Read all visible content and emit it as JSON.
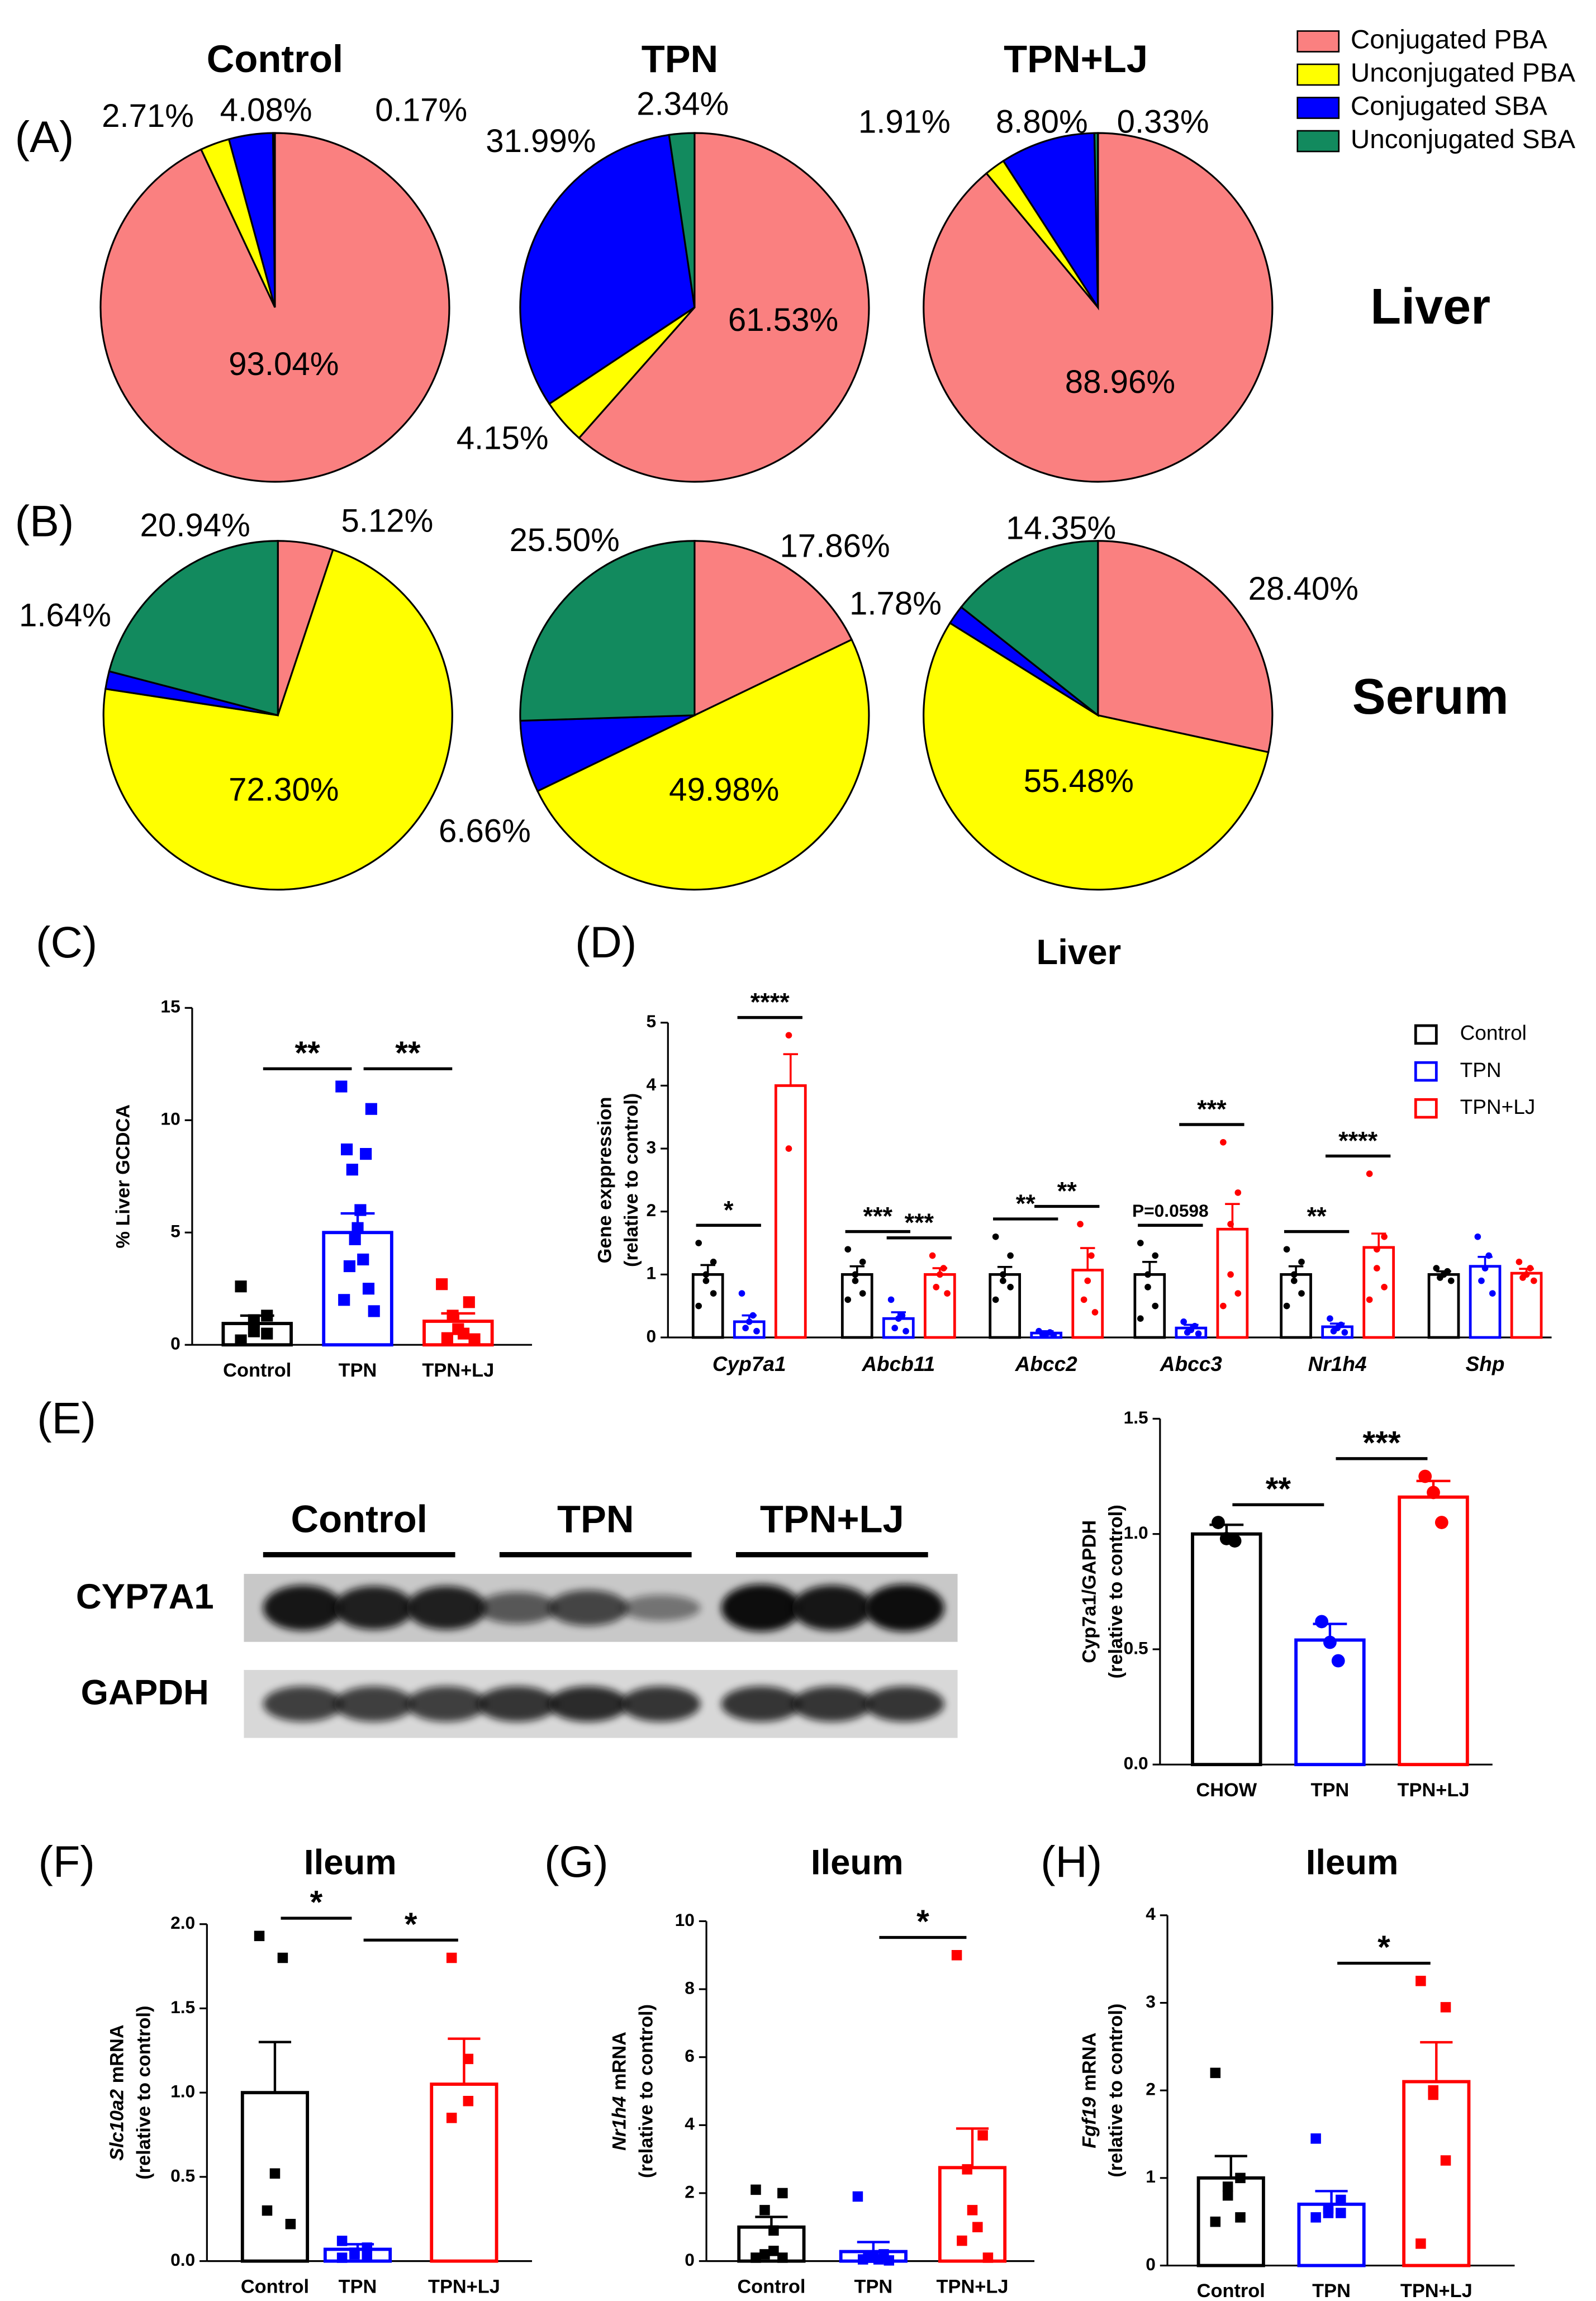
{
  "chart_data": [
    {
      "type": "pie",
      "panel": "(A)",
      "title": "Control",
      "categories": [
        "Conjugated PBA",
        "Unconjugated PBA",
        "Conjugated SBA",
        "Unconjugated SBA"
      ],
      "colors": [
        "#fa8080",
        "#ffff00",
        "#0000ff",
        "#128a5e"
      ],
      "values": [
        93.04,
        2.71,
        4.08,
        0.17
      ],
      "value_labels": [
        "93.04%",
        "2.71%",
        "4.08%",
        "0.17%"
      ],
      "legend": "top-right"
    },
    {
      "type": "pie",
      "title": "TPN",
      "categories": [
        "Conjugated PBA",
        "Unconjugated PBA",
        "Conjugated SBA",
        "Unconjugated SBA"
      ],
      "colors": [
        "#fa8080",
        "#ffff00",
        "#0000ff",
        "#128a5e"
      ],
      "values": [
        61.53,
        4.15,
        31.99,
        2.34
      ],
      "value_labels": [
        "61.53%",
        "4.15%",
        "31.99%",
        "2.34%"
      ]
    },
    {
      "type": "pie",
      "title": "TPN+LJ",
      "annotation": "Liver",
      "categories": [
        "Conjugated PBA",
        "Unconjugated PBA",
        "Conjugated SBA",
        "Unconjugated SBA"
      ],
      "colors": [
        "#fa8080",
        "#ffff00",
        "#0000ff",
        "#128a5e"
      ],
      "values": [
        88.96,
        1.91,
        8.8,
        0.33
      ],
      "value_labels": [
        "88.96%",
        "1.91%",
        "8.80%",
        "0.33%"
      ]
    },
    {
      "type": "pie",
      "panel": "(B)",
      "categories": [
        "Conjugated PBA",
        "Unconjugated PBA",
        "Conjugated SBA",
        "Unconjugated SBA"
      ],
      "colors": [
        "#fa8080",
        "#ffff00",
        "#0000ff",
        "#128a5e"
      ],
      "values": [
        5.12,
        72.3,
        1.64,
        20.94
      ],
      "value_labels": [
        "5.12%",
        "72.30%",
        "1.64%",
        "20.94%"
      ]
    },
    {
      "type": "pie",
      "categories": [
        "Conjugated PBA",
        "Unconjugated PBA",
        "Conjugated SBA",
        "Unconjugated SBA"
      ],
      "colors": [
        "#fa8080",
        "#ffff00",
        "#0000ff",
        "#128a5e"
      ],
      "values": [
        17.86,
        49.98,
        6.66,
        25.5
      ],
      "value_labels": [
        "17.86%",
        "49.98%",
        "6.66%",
        "25.50%"
      ]
    },
    {
      "type": "pie",
      "annotation": "Serum",
      "categories": [
        "Conjugated PBA",
        "Unconjugated PBA",
        "Conjugated SBA",
        "Unconjugated SBA"
      ],
      "colors": [
        "#fa8080",
        "#ffff00",
        "#0000ff",
        "#128a5e"
      ],
      "values": [
        28.4,
        55.48,
        1.78,
        14.35
      ],
      "value_labels": [
        "28.40%",
        "55.48%",
        "1.78%",
        "14.35%"
      ]
    },
    {
      "type": "bar",
      "panel": "(C)",
      "ylabel": [
        "% Liver GCDCA"
      ],
      "categories": [
        "Control",
        "TPN",
        "TPN+LJ"
      ],
      "colors": [
        "#000000",
        "#0000ff",
        "#ff0000"
      ],
      "marker": "square",
      "values": [
        0.95,
        5.0,
        1.05
      ],
      "errors": [
        0.35,
        0.85,
        0.35
      ],
      "points": [
        [
          2.6,
          1.3,
          1.1,
          0.6,
          0.5,
          0.2
        ],
        [
          11.5,
          10.5,
          8.7,
          8.5,
          7.8,
          6.0,
          5.2,
          4.7,
          3.8,
          3.5,
          2.5,
          2.0,
          1.5
        ],
        [
          2.7,
          1.9,
          1.3,
          0.7,
          0.5,
          0.3,
          0.25
        ]
      ],
      "ylim": [
        0,
        15
      ],
      "yticks": [
        0,
        5,
        10,
        15
      ],
      "annotations": [
        {
          "text": "**",
          "between": [
            "Control",
            "TPN"
          ]
        },
        {
          "text": "**",
          "between": [
            "TPN",
            "TPN+LJ"
          ]
        }
      ]
    },
    {
      "type": "grouped_bar",
      "panel": "(D)",
      "title": "Liver",
      "ylabel": [
        "Gene exppression",
        "(relative to control)"
      ],
      "legend": "top-right",
      "marker": "circle",
      "categories": [
        "Cyp7a1",
        "Abcb11",
        "Abcc2",
        "Abcc3",
        "Nr1h4",
        "Shp"
      ],
      "series": [
        {
          "name": "Control",
          "color": "#000000",
          "values": [
            1.0,
            1.0,
            1.0,
            1.0,
            1.0,
            1.0
          ],
          "errors": [
            0.15,
            0.13,
            0.12,
            0.2,
            0.13,
            0.05
          ],
          "points": [
            [
              1.5,
              1.2,
              1.0,
              0.9,
              0.7,
              0.5
            ],
            [
              1.4,
              1.2,
              1.0,
              0.9,
              0.7,
              0.6
            ],
            [
              1.6,
              1.3,
              1.0,
              0.9,
              0.8,
              0.6
            ],
            [
              1.5,
              1.3,
              1.0,
              0.8,
              0.5,
              0.3
            ],
            [
              1.4,
              1.2,
              1.0,
              0.9,
              0.7,
              0.5
            ],
            [
              1.1,
              1.05,
              1.0,
              0.95,
              0.9
            ]
          ]
        },
        {
          "name": "TPN",
          "color": "#0000ff",
          "values": [
            0.25,
            0.3,
            0.07,
            0.15,
            0.17,
            1.13
          ],
          "errors": [
            0.1,
            0.1,
            0.03,
            0.05,
            0.05,
            0.15
          ],
          "points": [
            [
              0.7,
              0.35,
              0.25,
              0.15,
              0.1
            ],
            [
              0.6,
              0.35,
              0.3,
              0.15,
              0.1
            ],
            [
              0.1,
              0.08,
              0.06,
              0.05,
              0.04
            ],
            [
              0.25,
              0.18,
              0.12,
              0.08,
              0.06
            ],
            [
              0.3,
              0.2,
              0.15,
              0.1,
              0.08
            ],
            [
              1.6,
              1.3,
              1.1,
              0.9,
              0.7
            ]
          ]
        },
        {
          "name": "TPN+LJ",
          "color": "#ff0000",
          "values": [
            4.0,
            1.0,
            1.07,
            1.72,
            1.43,
            1.02
          ],
          "errors": [
            0.5,
            0.1,
            0.35,
            0.4,
            0.22,
            0.07
          ],
          "points": [
            [
              4.8,
              3.0
            ],
            [
              1.3,
              1.1,
              1.0,
              0.8,
              0.7
            ],
            [
              1.8,
              1.3,
              0.9,
              0.6,
              0.4
            ],
            [
              3.1,
              2.3,
              1.8,
              1.0,
              0.7,
              0.5
            ],
            [
              2.6,
              1.6,
              1.4,
              1.1,
              0.8,
              0.6
            ],
            [
              1.2,
              1.1,
              1.0,
              0.95,
              0.9
            ]
          ]
        }
      ],
      "ylim": [
        0,
        5
      ],
      "yticks": [
        0,
        1,
        2,
        3,
        4,
        5
      ],
      "annotations": [
        {
          "category": "Cyp7a1",
          "text": "*",
          "between": [
            "Control",
            "TPN"
          ]
        },
        {
          "category": "Cyp7a1",
          "text": "****",
          "between": [
            "TPN",
            "TPN+LJ"
          ]
        },
        {
          "category": "Abcb11",
          "text": "***",
          "between": [
            "Control",
            "TPN"
          ]
        },
        {
          "category": "Abcb11",
          "text": "***",
          "between": [
            "TPN",
            "TPN+LJ"
          ]
        },
        {
          "category": "Abcc2",
          "text": "**",
          "between": [
            "Control",
            "TPN"
          ]
        },
        {
          "category": "Abcc2",
          "text": "**",
          "between": [
            "TPN",
            "TPN+LJ"
          ]
        },
        {
          "category": "Abcc3",
          "text": "P=0.0598",
          "between": [
            "Control",
            "TPN"
          ]
        },
        {
          "category": "Abcc3",
          "text": "***",
          "between": [
            "TPN",
            "TPN+LJ"
          ]
        },
        {
          "category": "Nr1h4",
          "text": "**",
          "between": [
            "Control",
            "TPN"
          ]
        },
        {
          "category": "Nr1h4",
          "text": "****",
          "between": [
            "TPN",
            "TPN+LJ"
          ]
        }
      ]
    },
    {
      "type": "bar",
      "panel": "(E)",
      "ylabel": [
        "Cyp7a1/GAPDH",
        "(relative to control)"
      ],
      "categories": [
        "CHOW",
        "TPN",
        "TPN+LJ"
      ],
      "colors": [
        "#000000",
        "#0000ff",
        "#ff0000"
      ],
      "marker": "circle",
      "values": [
        1.0,
        0.54,
        1.16
      ],
      "errors": [
        0.04,
        0.07,
        0.07
      ],
      "points": [
        [
          1.05,
          0.98,
          0.97
        ],
        [
          0.62,
          0.53,
          0.45
        ],
        [
          1.25,
          1.18,
          1.05
        ]
      ],
      "ylim": [
        0,
        1.5
      ],
      "yticks": [
        {
          "value": 0,
          "label": "0.0"
        },
        {
          "value": 0.5,
          "label": "0.5"
        },
        {
          "value": 1,
          "label": "1.0"
        },
        {
          "value": 1.5,
          "label": "1.5"
        }
      ],
      "annotations": [
        {
          "text": "**",
          "between": [
            "CHOW",
            "TPN"
          ]
        },
        {
          "text": "***",
          "between": [
            "TPN",
            "TPN+LJ"
          ]
        }
      ]
    },
    {
      "type": "bar",
      "panel": "(F)",
      "title": "Ileum",
      "ylabel_gene": "Slc10a2",
      "ylabel": [
        "mRNA",
        "(relative to control)"
      ],
      "categories": [
        "Control",
        "TPN",
        "TPN+LJ"
      ],
      "colors": [
        "#000000",
        "#0000ff",
        "#ff0000"
      ],
      "marker": "square",
      "values": [
        1.0,
        0.07,
        1.05
      ],
      "errors": [
        0.3,
        0.03,
        0.27
      ],
      "points": [
        [
          1.93,
          1.8,
          0.52,
          0.3,
          0.22
        ],
        [
          0.12,
          0.08,
          0.05,
          0.04,
          0.03,
          0.02
        ],
        [
          1.8,
          1.2,
          0.95,
          0.85
        ]
      ],
      "ylim": [
        0,
        2
      ],
      "yticks": [
        {
          "value": 0,
          "label": "0.0"
        },
        {
          "value": 0.5,
          "label": "0.5"
        },
        {
          "value": 1,
          "label": "1.0"
        },
        {
          "value": 1.5,
          "label": "1.5"
        },
        {
          "value": 2,
          "label": "2.0"
        }
      ],
      "annotations": [
        {
          "text": "*",
          "between": [
            "Control",
            "TPN"
          ]
        },
        {
          "text": "*",
          "between": [
            "TPN",
            "TPN+LJ"
          ]
        }
      ]
    },
    {
      "type": "bar",
      "panel": "(G)",
      "title": "Ileum",
      "ylabel_gene": "Nr1h4",
      "ylabel": [
        "mRNA",
        "(relative to control)"
      ],
      "categories": [
        "Control",
        "TPN",
        "TPN+LJ"
      ],
      "colors": [
        "#000000",
        "#0000ff",
        "#ff0000"
      ],
      "marker": "square",
      "values": [
        1.0,
        0.28,
        2.75
      ],
      "errors": [
        0.3,
        0.28,
        1.15
      ],
      "points": [
        [
          2.1,
          2.0,
          1.5,
          0.9,
          0.3,
          0.2,
          0.1,
          0.1
        ],
        [
          1.9,
          0.2,
          0.1,
          0.1,
          0.05,
          0.05,
          0.02
        ],
        [
          9.0,
          3.7,
          2.7,
          1.5,
          1.0,
          0.6,
          0.1
        ]
      ],
      "ylim": [
        0,
        10
      ],
      "yticks": [
        0,
        2,
        4,
        6,
        8,
        10
      ],
      "annotations": [
        {
          "text": "*",
          "between": [
            "TPN",
            "TPN+LJ"
          ]
        }
      ]
    },
    {
      "type": "bar",
      "panel": "(H)",
      "title": "Ileum",
      "ylabel_gene": "Fgf19",
      "ylabel": [
        "mRNA",
        "(relative to control)"
      ],
      "categories": [
        "Control",
        "TPN",
        "TPN+LJ"
      ],
      "colors": [
        "#000000",
        "#0000ff",
        "#ff0000"
      ],
      "marker": "square",
      "values": [
        1.0,
        0.7,
        2.1
      ],
      "errors": [
        0.25,
        0.15,
        0.45
      ],
      "points": [
        [
          2.2,
          1.0,
          0.9,
          0.8,
          0.55,
          0.5
        ],
        [
          1.45,
          0.75,
          0.65,
          0.6,
          0.6,
          0.55
        ],
        [
          3.25,
          2.95,
          2.0,
          1.95,
          1.2,
          0.25
        ]
      ],
      "ylim": [
        0,
        4
      ],
      "yticks": [
        0,
        1,
        2,
        3,
        4
      ],
      "annotations": [
        {
          "text": "*",
          "between": [
            "TPN",
            "TPN+LJ"
          ]
        }
      ]
    }
  ],
  "blot": {
    "groups": [
      "Control",
      "TPN",
      "TPN+LJ"
    ],
    "rows": [
      "CYP7A1",
      "GAPDH"
    ]
  }
}
